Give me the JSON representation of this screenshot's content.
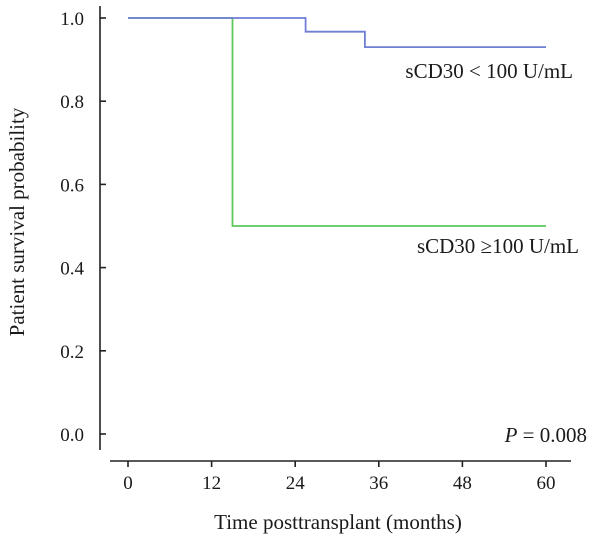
{
  "chart_data": {
    "type": "line",
    "title": "",
    "xlabel": "Time posttransplant (months)",
    "ylabel": "Patient survival probability",
    "xlim": [
      0,
      60
    ],
    "ylim": [
      0,
      1
    ],
    "xticks": [
      "0",
      "12",
      "24",
      "36",
      "48",
      "60"
    ],
    "yticks": [
      "0.0",
      "0.2",
      "0.4",
      "0.6",
      "0.8",
      "1.0"
    ],
    "grid": false,
    "step": true,
    "series": [
      {
        "name": "sCD30 < 100 U/mL",
        "color": "#6f7fd4",
        "x": [
          0,
          25.5,
          25.5,
          34,
          34,
          60
        ],
        "y": [
          1.0,
          1.0,
          0.967,
          0.967,
          0.93,
          0.93
        ]
      },
      {
        "name": "sCD30 ≥100 U/mL",
        "color": "#5cc85c",
        "x": [
          0,
          15,
          15,
          60
        ],
        "y": [
          1.0,
          1.0,
          0.5,
          0.5
        ]
      }
    ],
    "annotations": {
      "p_label": "P",
      "p_value": " = 0.008"
    }
  }
}
